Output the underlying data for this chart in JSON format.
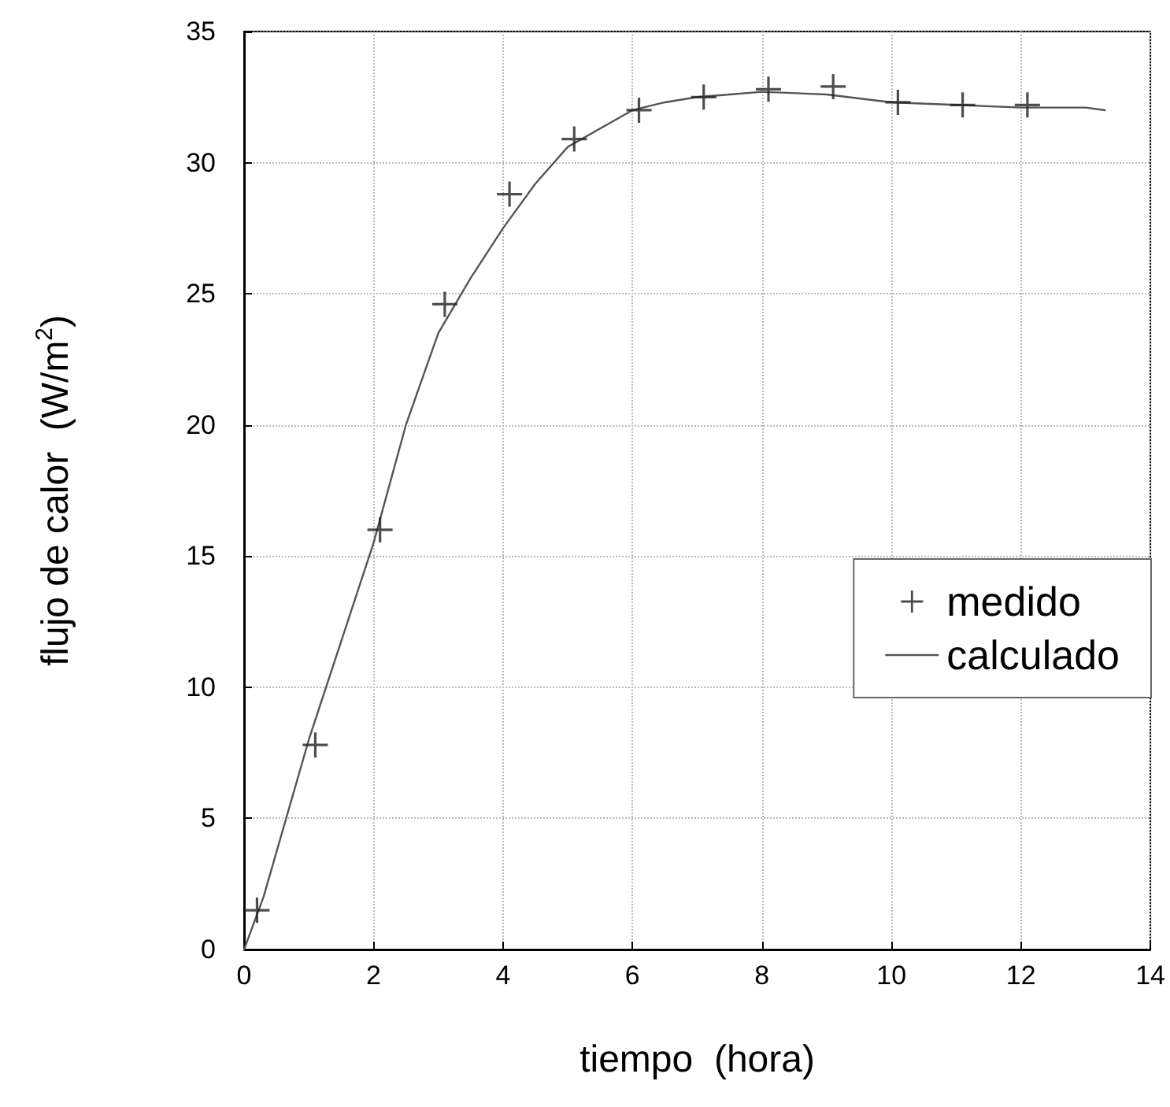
{
  "chart_data": {
    "type": "line",
    "xlabel": "tiempo  (hora)",
    "ylabel": "flujo de calor  (W/m$^{2}$)",
    "xlim": [
      0,
      14
    ],
    "xticks": [
      0,
      2,
      4,
      6,
      8,
      10,
      12,
      14
    ],
    "ylim": [
      0,
      35
    ],
    "yticks": [
      0,
      5,
      10,
      15,
      20,
      25,
      30,
      35
    ],
    "grid": true,
    "legend": "right",
    "series": [
      {
        "name": "medido",
        "type": "scatter",
        "marker": "cross",
        "color": "#222222",
        "x": [
          0.2,
          1.1,
          2.1,
          3.1,
          4.1,
          5.1,
          6.1,
          7.1,
          8.1,
          9.1,
          10.1,
          11.1,
          12.1
        ],
        "values": [
          1.5,
          7.8,
          16,
          24.6,
          28.8,
          30.9,
          32,
          32.5,
          32.8,
          32.9,
          32.3,
          32.2,
          32.2
        ]
      },
      {
        "name": "calculado",
        "marker": "none",
        "line_style": "solid",
        "color": "#555555",
        "x": [
          0,
          0.3,
          1,
          2,
          2.5,
          3,
          3.5,
          4,
          4.5,
          5,
          5.5,
          6,
          6.5,
          7,
          7.5,
          8,
          9,
          10,
          11,
          12,
          13,
          13.3
        ],
        "values": [
          0,
          2,
          8,
          15.5,
          20,
          23.5,
          25.6,
          27.5,
          29.2,
          30.6,
          31.3,
          32,
          32.3,
          32.5,
          32.6,
          32.7,
          32.6,
          32.3,
          32.2,
          32.1,
          32.1,
          32
        ]
      }
    ]
  }
}
